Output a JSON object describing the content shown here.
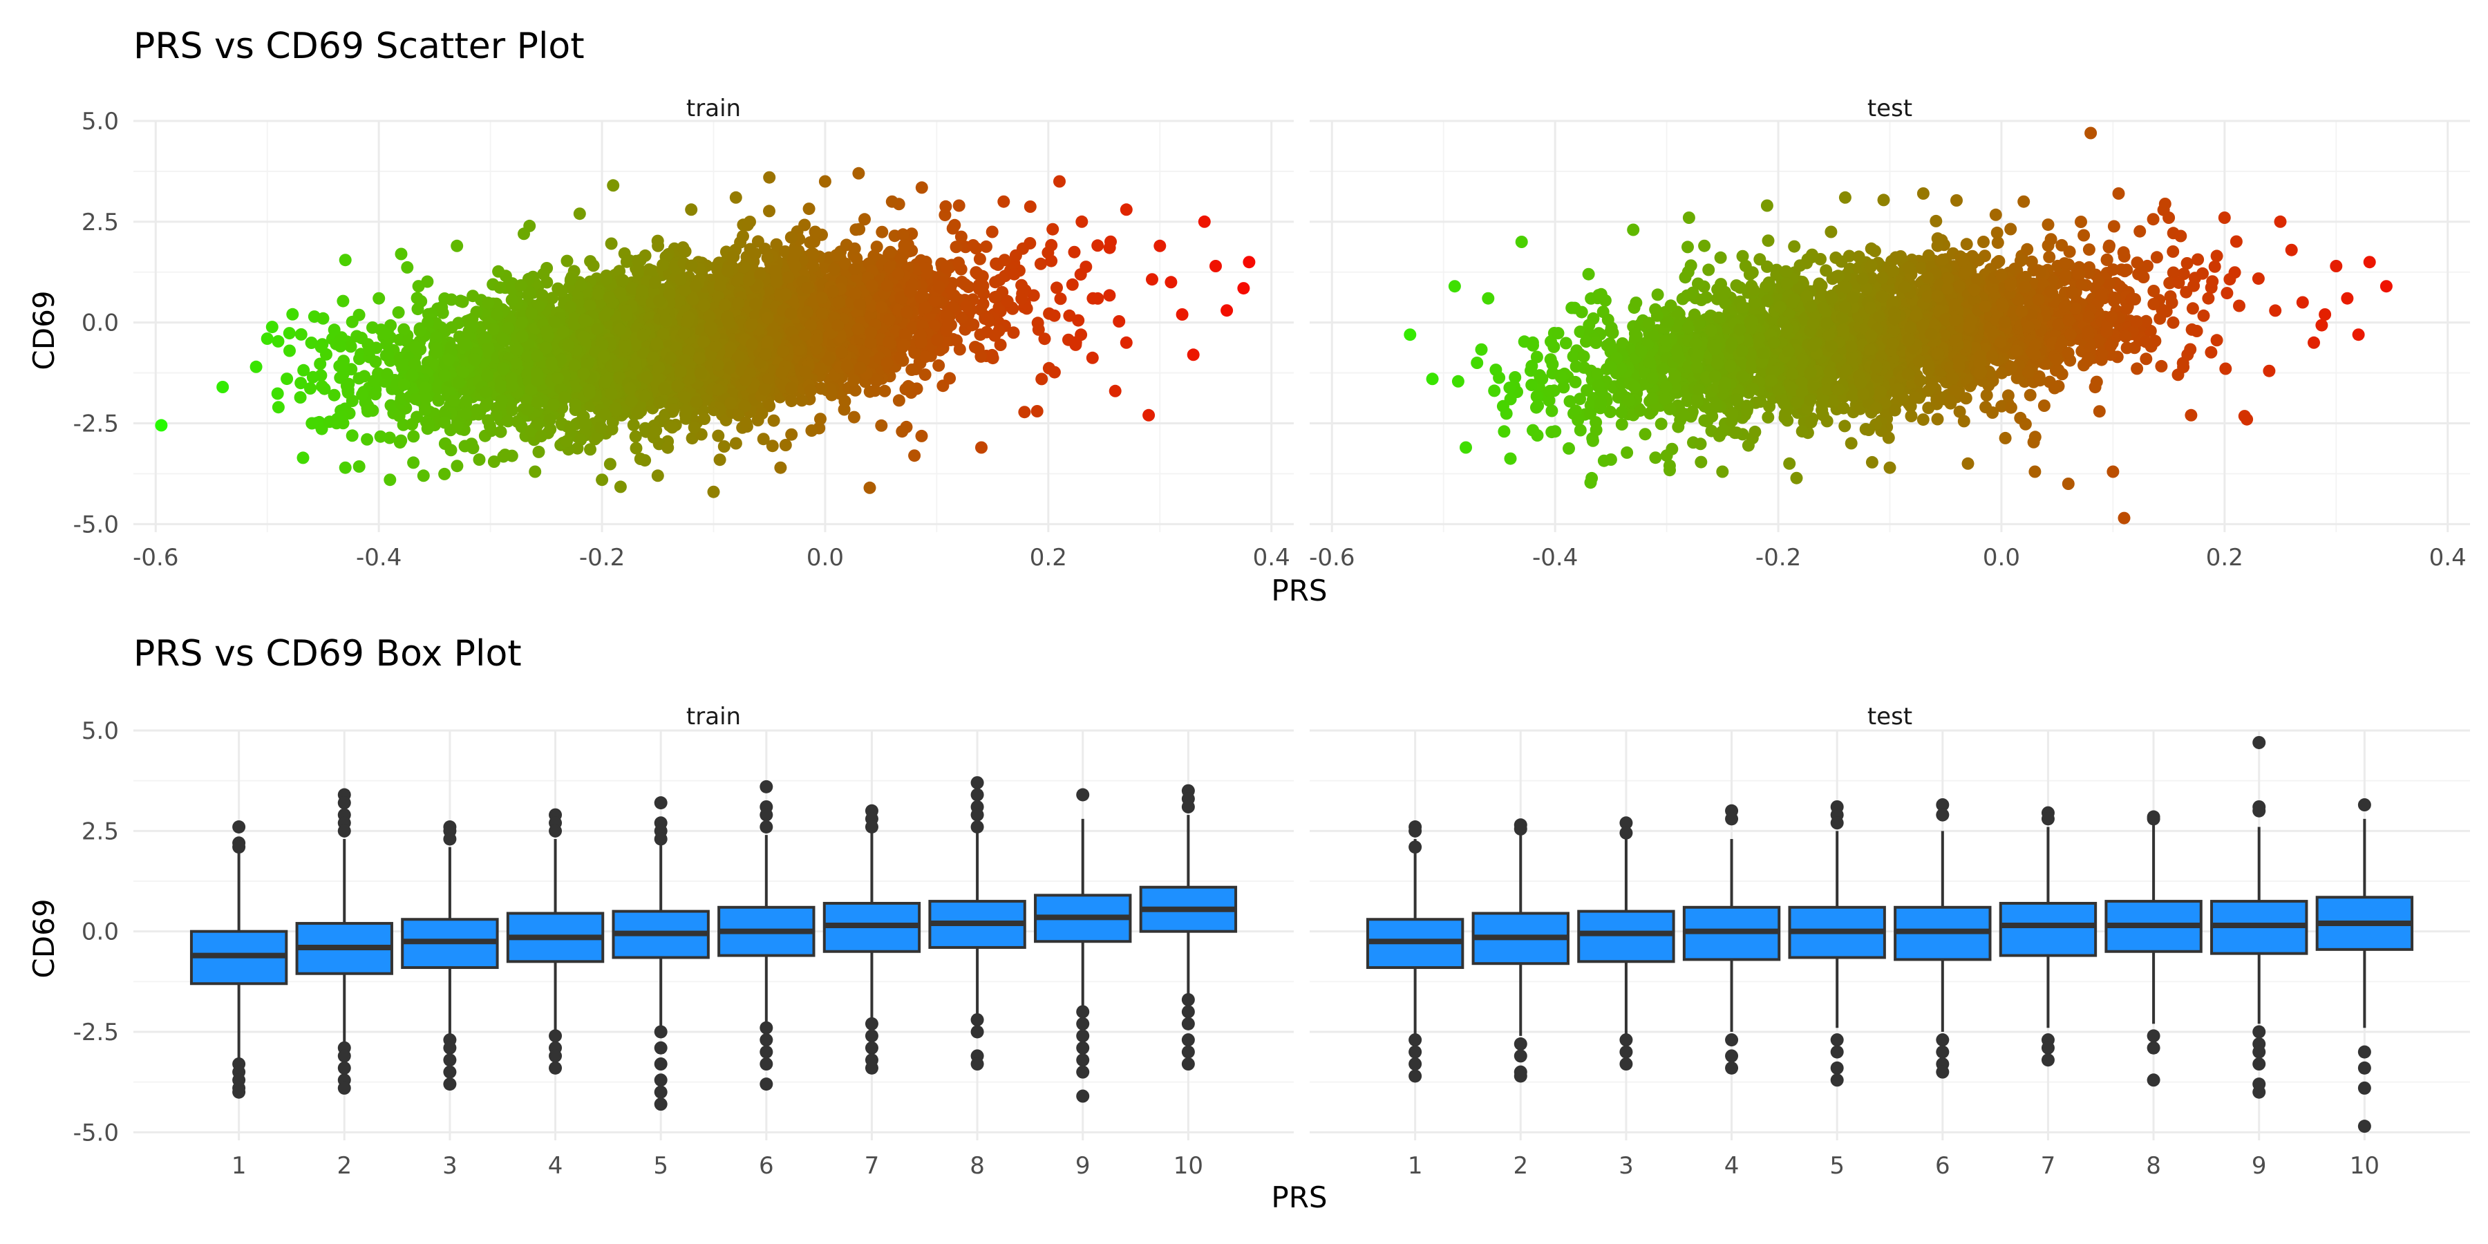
{
  "chart_data": [
    {
      "type": "scatter",
      "title": "PRS vs CD69 Scatter Plot",
      "xlabel": "PRS",
      "ylabel": "CD69",
      "xlim": [
        -0.62,
        0.42
      ],
      "ylim": [
        -5.2,
        5.0
      ],
      "x_ticks": [
        "-0.6",
        "-0.4",
        "-0.2",
        "0.0",
        "0.2",
        "0.4"
      ],
      "y_ticks": [
        "5.0",
        "2.5",
        "0.0",
        "-2.5",
        "-5.0"
      ],
      "color_scale": {
        "low": "#22ff00",
        "high": "#ff0000",
        "variable": "PRS"
      },
      "grid": true,
      "legend": "none",
      "panels": [
        {
          "label": "train",
          "points": [
            [
              -0.595,
              -2.55
            ],
            [
              -0.54,
              -1.6
            ],
            [
              -0.51,
              -1.1
            ],
            [
              -0.5,
              -0.4
            ],
            [
              -0.49,
              -2.1
            ],
            [
              -0.48,
              -0.7
            ],
            [
              -0.47,
              -1.5
            ],
            [
              -0.46,
              -2.5
            ],
            [
              -0.45,
              0.1
            ],
            [
              -0.44,
              -1.8
            ],
            [
              -0.43,
              -3.6
            ],
            [
              -0.43,
              1.55
            ],
            [
              -0.41,
              -2.2
            ],
            [
              -0.4,
              0.6
            ],
            [
              -0.39,
              -3.9
            ],
            [
              -0.38,
              1.7
            ],
            [
              -0.36,
              -3.8
            ],
            [
              -0.33,
              1.9
            ],
            [
              -0.31,
              -3.4
            ],
            [
              -0.27,
              2.2
            ],
            [
              -0.26,
              -3.7
            ],
            [
              -0.22,
              2.7
            ],
            [
              -0.2,
              -3.9
            ],
            [
              -0.19,
              3.4
            ],
            [
              -0.15,
              -3.8
            ],
            [
              -0.12,
              2.8
            ],
            [
              -0.1,
              -4.2
            ],
            [
              -0.08,
              3.1
            ],
            [
              -0.05,
              3.6
            ],
            [
              -0.04,
              -3.6
            ],
            [
              0.0,
              3.5
            ],
            [
              0.03,
              3.7
            ],
            [
              0.04,
              -4.1
            ],
            [
              0.06,
              3.0
            ],
            [
              0.08,
              -3.3
            ],
            [
              0.12,
              2.9
            ],
            [
              0.14,
              -3.1
            ],
            [
              0.16,
              3.0
            ],
            [
              0.19,
              -2.2
            ],
            [
              0.21,
              3.5
            ],
            [
              0.23,
              2.5
            ],
            [
              0.26,
              -1.7
            ],
            [
              0.27,
              2.8
            ],
            [
              0.29,
              -2.3
            ],
            [
              0.3,
              1.9
            ],
            [
              0.32,
              0.2
            ],
            [
              0.34,
              2.5
            ],
            [
              0.35,
              1.4
            ],
            [
              0.36,
              0.3
            ],
            [
              0.375,
              0.85
            ],
            [
              0.38,
              1.5
            ],
            [
              0.24,
              0.6
            ],
            [
              0.27,
              -0.5
            ],
            [
              0.31,
              1.0
            ],
            [
              0.33,
              -0.8
            ]
          ]
        },
        {
          "label": "test",
          "points": [
            [
              -0.53,
              -0.3
            ],
            [
              -0.51,
              -1.4
            ],
            [
              -0.49,
              0.9
            ],
            [
              -0.48,
              -3.1
            ],
            [
              -0.47,
              -1.0
            ],
            [
              -0.46,
              0.6
            ],
            [
              -0.44,
              -1.9
            ],
            [
              -0.43,
              2.0
            ],
            [
              -0.42,
              -0.5
            ],
            [
              -0.4,
              -2.7
            ],
            [
              -0.37,
              1.2
            ],
            [
              -0.35,
              -3.4
            ],
            [
              -0.33,
              2.3
            ],
            [
              -0.3,
              -3.3
            ],
            [
              -0.28,
              2.6
            ],
            [
              -0.25,
              -3.7
            ],
            [
              -0.21,
              2.9
            ],
            [
              -0.19,
              -3.5
            ],
            [
              -0.14,
              3.1
            ],
            [
              -0.1,
              -3.6
            ],
            [
              -0.07,
              3.2
            ],
            [
              -0.03,
              -3.5
            ],
            [
              0.02,
              3.0
            ],
            [
              0.03,
              -3.7
            ],
            [
              0.06,
              -4.0
            ],
            [
              0.08,
              4.7
            ],
            [
              0.1,
              -3.7
            ],
            [
              0.105,
              3.2
            ],
            [
              0.11,
              -4.85
            ],
            [
              0.15,
              2.6
            ],
            [
              0.17,
              -2.3
            ],
            [
              0.2,
              2.6
            ],
            [
              0.22,
              -2.4
            ],
            [
              0.25,
              2.5
            ],
            [
              0.28,
              -0.5
            ],
            [
              0.3,
              1.4
            ],
            [
              0.32,
              -0.3
            ],
            [
              0.33,
              1.5
            ],
            [
              0.345,
              0.9
            ],
            [
              0.27,
              0.5
            ],
            [
              0.24,
              -1.2
            ],
            [
              0.29,
              0.2
            ],
            [
              0.31,
              0.6
            ],
            [
              0.26,
              1.8
            ]
          ]
        }
      ]
    },
    {
      "type": "box",
      "title": "PRS vs CD69 Box Plot",
      "xlabel": "PRS",
      "ylabel": "CD69",
      "categories": [
        "1",
        "2",
        "3",
        "4",
        "5",
        "6",
        "7",
        "8",
        "9",
        "10"
      ],
      "ylim": [
        -5.2,
        5.0
      ],
      "y_ticks": [
        "5.0",
        "2.5",
        "0.0",
        "-2.5",
        "-5.0"
      ],
      "box_color": "#1e90ff",
      "grid": true,
      "panels": [
        {
          "label": "train",
          "boxes": [
            {
              "q1": -1.3,
              "median": -0.6,
              "q3": 0.0,
              "whisker_low": -3.2,
              "whisker_high": 2.0,
              "outliers": [
                2.6,
                2.2,
                2.1,
                -3.3,
                -3.5,
                -3.7,
                -3.9,
                -4.0
              ]
            },
            {
              "q1": -1.05,
              "median": -0.4,
              "q3": 0.2,
              "whisker_low": -2.8,
              "whisker_high": 2.3,
              "outliers": [
                3.4,
                3.2,
                2.9,
                2.7,
                2.5,
                -2.9,
                -3.1,
                -3.4,
                -3.7,
                -3.9
              ]
            },
            {
              "q1": -0.9,
              "median": -0.25,
              "q3": 0.3,
              "whisker_low": -2.6,
              "whisker_high": 2.1,
              "outliers": [
                2.6,
                2.5,
                2.3,
                -2.7,
                -2.9,
                -3.2,
                -3.5,
                -3.8
              ]
            },
            {
              "q1": -0.75,
              "median": -0.15,
              "q3": 0.45,
              "whisker_low": -2.5,
              "whisker_high": 2.3,
              "outliers": [
                2.9,
                2.7,
                2.5,
                -2.6,
                -2.9,
                -3.1,
                -3.4
              ]
            },
            {
              "q1": -0.65,
              "median": -0.05,
              "q3": 0.5,
              "whisker_low": -2.4,
              "whisker_high": 2.2,
              "outliers": [
                3.2,
                2.7,
                2.5,
                2.3,
                -2.5,
                -2.9,
                -3.3,
                -3.7,
                -4.0,
                -4.3
              ]
            },
            {
              "q1": -0.6,
              "median": 0.0,
              "q3": 0.6,
              "whisker_low": -2.3,
              "whisker_high": 2.4,
              "outliers": [
                3.6,
                3.1,
                2.9,
                2.6,
                -2.4,
                -2.7,
                -3.0,
                -3.3,
                -3.8
              ]
            },
            {
              "q1": -0.5,
              "median": 0.15,
              "q3": 0.7,
              "whisker_low": -2.2,
              "whisker_high": 2.5,
              "outliers": [
                3.0,
                2.8,
                2.6,
                -2.3,
                -2.6,
                -2.9,
                -3.2,
                -3.4
              ]
            },
            {
              "q1": -0.4,
              "median": 0.2,
              "q3": 0.75,
              "whisker_low": -2.1,
              "whisker_high": 2.5,
              "outliers": [
                3.7,
                3.4,
                3.1,
                2.9,
                2.6,
                -2.2,
                -2.5,
                -3.1,
                -3.3
              ]
            },
            {
              "q1": -0.25,
              "median": 0.35,
              "q3": 0.9,
              "whisker_low": -1.9,
              "whisker_high": 2.8,
              "outliers": [
                3.4,
                -2.0,
                -2.3,
                -2.6,
                -2.9,
                -3.2,
                -3.5,
                -4.1
              ]
            },
            {
              "q1": 0.0,
              "median": 0.55,
              "q3": 1.1,
              "whisker_low": -1.6,
              "whisker_high": 2.9,
              "outliers": [
                3.5,
                3.3,
                3.1,
                -1.7,
                -2.0,
                -2.3,
                -2.7,
                -3.0,
                -3.3
              ]
            }
          ]
        },
        {
          "label": "test",
          "boxes": [
            {
              "q1": -0.9,
              "median": -0.25,
              "q3": 0.3,
              "whisker_low": -2.6,
              "whisker_high": 2.3,
              "outliers": [
                2.6,
                2.5,
                2.1,
                -2.7,
                -3.0,
                -3.3,
                -3.6
              ]
            },
            {
              "q1": -0.8,
              "median": -0.15,
              "q3": 0.45,
              "whisker_low": -2.6,
              "whisker_high": 2.4,
              "outliers": [
                2.65,
                2.55,
                -2.8,
                -3.1,
                -3.5,
                -3.6
              ]
            },
            {
              "q1": -0.75,
              "median": -0.05,
              "q3": 0.5,
              "whisker_low": -2.6,
              "whisker_high": 2.4,
              "outliers": [
                2.7,
                2.45,
                -2.7,
                -3.0,
                -3.3
              ]
            },
            {
              "q1": -0.7,
              "median": 0.0,
              "q3": 0.6,
              "whisker_low": -2.5,
              "whisker_high": 2.3,
              "outliers": [
                3.0,
                2.8,
                -2.7,
                -3.1,
                -3.4
              ]
            },
            {
              "q1": -0.65,
              "median": 0.0,
              "q3": 0.6,
              "whisker_low": -2.4,
              "whisker_high": 2.5,
              "outliers": [
                3.1,
                2.9,
                2.7,
                -2.7,
                -3.0,
                -3.4,
                -3.7
              ]
            },
            {
              "q1": -0.7,
              "median": 0.0,
              "q3": 0.6,
              "whisker_low": -2.5,
              "whisker_high": 2.5,
              "outliers": [
                3.15,
                2.9,
                -2.7,
                -3.0,
                -3.3,
                -3.5
              ]
            },
            {
              "q1": -0.6,
              "median": 0.15,
              "q3": 0.7,
              "whisker_low": -2.4,
              "whisker_high": 2.6,
              "outliers": [
                2.95,
                2.8,
                -2.7,
                -2.9,
                -3.2
              ]
            },
            {
              "q1": -0.5,
              "median": 0.15,
              "q3": 0.75,
              "whisker_low": -2.3,
              "whisker_high": 2.7,
              "outliers": [
                2.85,
                2.8,
                -2.6,
                -2.9,
                -3.7
              ]
            },
            {
              "q1": -0.55,
              "median": 0.15,
              "q3": 0.75,
              "whisker_low": -2.3,
              "whisker_high": 2.6,
              "outliers": [
                4.7,
                3.1,
                3.0,
                -2.5,
                -2.8,
                -3.0,
                -3.3,
                -3.8,
                -4.0
              ]
            },
            {
              "q1": -0.45,
              "median": 0.2,
              "q3": 0.85,
              "whisker_low": -2.4,
              "whisker_high": 2.8,
              "outliers": [
                3.15,
                -3.0,
                -3.4,
                -3.9,
                -4.85
              ]
            }
          ]
        }
      ]
    }
  ]
}
